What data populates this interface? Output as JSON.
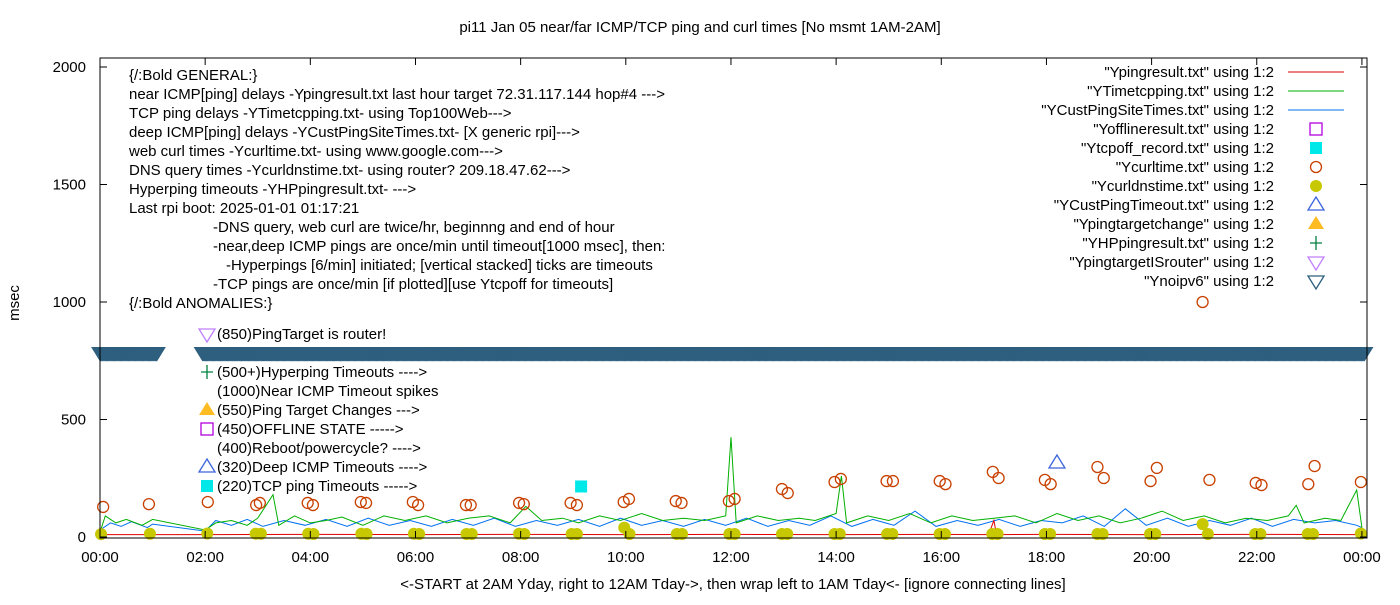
{
  "chart_data": {
    "type": "scatter",
    "title": "pi11 Jan 05  near/far ICMP/TCP ping and curl times [No msmt 1AM-2AM]",
    "xlabel": "<-START at 2AM Yday, right to 12AM Tday->, then wrap left to 1AM Tday<- [ignore connecting lines]",
    "ylabel": "msec",
    "xlim": [
      0,
      24.1
    ],
    "ylim": [
      0,
      2000
    ],
    "x_unit": "hours of day",
    "x_ticks": [
      "00:00",
      "02:00",
      "04:00",
      "06:00",
      "08:00",
      "10:00",
      "12:00",
      "14:00",
      "16:00",
      "18:00",
      "20:00",
      "22:00",
      "00:00"
    ],
    "y_ticks": [
      "0",
      "500",
      "1000",
      "1500",
      "2000"
    ],
    "grid": false,
    "legend_position": "top-right",
    "notes": [
      {
        "text": "{/:Bold GENERAL:}",
        "indent": 0
      },
      {
        "text": "near ICMP[ping] delays -Ypingresult.txt last hour target 72.31.117.144 hop#4 --->",
        "indent": 0
      },
      {
        "text": "TCP ping delays -YTimetcpping.txt- using Top100Web--->",
        "indent": 0
      },
      {
        "text": "deep ICMP[ping] delays -YCustPingSiteTimes.txt- [X generic rpi]--->",
        "indent": 0
      },
      {
        "text": "web curl times -Ycurltime.txt- using www.google.com--->",
        "indent": 0
      },
      {
        "text": "DNS query times -Ycurldnstime.txt- using router? 209.18.47.62--->",
        "indent": 0
      },
      {
        "text": "Hyperping timeouts -YHPpingresult.txt- --->",
        "indent": 0
      },
      {
        "text": "Last rpi boot: 2025-01-01 01:17:21",
        "indent": 0
      },
      {
        "text": "-DNS query, web curl are twice/hr, beginnng and end of hour",
        "indent": 1
      },
      {
        "text": "-near,deep ICMP pings are once/min until timeout[1000 msec], then:",
        "indent": 1
      },
      {
        "text": "-Hyperpings [6/min] initiated; [vertical stacked] ticks are timeouts",
        "indent": 2
      },
      {
        "text": "-TCP pings are once/min [if plotted][use Ytcpoff for timeouts]",
        "indent": 1
      },
      {
        "text": "{/:Bold ANOMALIES:}",
        "indent": 0
      }
    ],
    "anomalies": [
      {
        "symbol": "router",
        "text": "(850)PingTarget is router!"
      },
      {
        "symbol": "hyperping",
        "text": "(500+)Hyperping Timeouts ---->"
      },
      {
        "symbol": "none",
        "text": "(1000)Near ICMP Timeout spikes"
      },
      {
        "symbol": "targetchange",
        "text": "(550)Ping Target Changes --->"
      },
      {
        "symbol": "offline",
        "text": "(450)OFFLINE STATE ----->"
      },
      {
        "symbol": "none",
        "text": "(400)Reboot/powercycle? ---->"
      },
      {
        "symbol": "deeptimeout",
        "text": "(320)Deep ICMP Timeouts ---->"
      },
      {
        "symbol": "tcpoff",
        "text": "(220)TCP ping Timeouts ----->"
      }
    ],
    "series": [
      {
        "name": "\"Ypingresult.txt\" using 1:2",
        "key": "ping",
        "style": "line",
        "color": "#e00000",
        "points": [
          [
            0,
            10
          ],
          [
            1,
            10
          ],
          [
            2,
            10
          ],
          [
            4,
            11
          ],
          [
            6,
            10
          ],
          [
            8,
            11
          ],
          [
            10,
            10
          ],
          [
            12,
            11
          ],
          [
            14,
            10
          ],
          [
            16,
            11
          ],
          [
            16.9,
            10
          ],
          [
            17.0,
            70
          ],
          [
            17.05,
            10
          ],
          [
            18,
            11
          ],
          [
            20,
            10
          ],
          [
            22,
            11
          ],
          [
            24,
            10
          ]
        ]
      },
      {
        "name": "\"YTimetcpping.txt\" using 1:2",
        "key": "tcp",
        "style": "line",
        "color": "#00b000",
        "points": [
          [
            0,
            20
          ],
          [
            0.1,
            90
          ],
          [
            0.3,
            60
          ],
          [
            0.5,
            75
          ],
          [
            0.8,
            50
          ],
          [
            1.0,
            75
          ],
          [
            2.0,
            30
          ],
          [
            2.2,
            60
          ],
          [
            2.5,
            70
          ],
          [
            2.8,
            50
          ],
          [
            3.0,
            80
          ],
          [
            3.29,
            180
          ],
          [
            3.4,
            50
          ],
          [
            3.7,
            90
          ],
          [
            4.0,
            60
          ],
          [
            4.3,
            70
          ],
          [
            4.6,
            85
          ],
          [
            5.0,
            50
          ],
          [
            5.4,
            90
          ],
          [
            5.8,
            70
          ],
          [
            6.2,
            90
          ],
          [
            6.6,
            60
          ],
          [
            7.0,
            80
          ],
          [
            7.4,
            90
          ],
          [
            7.8,
            60
          ],
          [
            8.1,
            130
          ],
          [
            8.4,
            70
          ],
          [
            8.8,
            80
          ],
          [
            9.1,
            60
          ],
          [
            9.5,
            90
          ],
          [
            9.9,
            70
          ],
          [
            10.3,
            100
          ],
          [
            10.7,
            70
          ],
          [
            11.1,
            80
          ],
          [
            11.5,
            70
          ],
          [
            11.9,
            90
          ],
          [
            12.0,
            425
          ],
          [
            12.1,
            60
          ],
          [
            12.5,
            90
          ],
          [
            12.9,
            70
          ],
          [
            13.3,
            80
          ],
          [
            13.6,
            70
          ],
          [
            14.0,
            100
          ],
          [
            14.1,
            260
          ],
          [
            14.2,
            60
          ],
          [
            14.6,
            90
          ],
          [
            15.0,
            70
          ],
          [
            15.4,
            100
          ],
          [
            15.8,
            60
          ],
          [
            16.2,
            90
          ],
          [
            16.6,
            70
          ],
          [
            17.0,
            80
          ],
          [
            17.4,
            90
          ],
          [
            17.8,
            60
          ],
          [
            18.2,
            100
          ],
          [
            18.6,
            70
          ],
          [
            19.0,
            90
          ],
          [
            19.4,
            60
          ],
          [
            19.8,
            80
          ],
          [
            20.2,
            110
          ],
          [
            20.6,
            70
          ],
          [
            21.0,
            90
          ],
          [
            21.4,
            60
          ],
          [
            21.8,
            80
          ],
          [
            22.2,
            70
          ],
          [
            22.6,
            90
          ],
          [
            22.75,
            135
          ],
          [
            22.9,
            60
          ],
          [
            23.3,
            80
          ],
          [
            23.6,
            70
          ],
          [
            23.9,
            200
          ],
          [
            24.0,
            40
          ]
        ]
      },
      {
        "name": "\"YCustPingSiteTimes.txt\" using 1:2",
        "key": "cust",
        "style": "line",
        "color": "#0070f0",
        "points": [
          [
            0,
            30
          ],
          [
            0.2,
            60
          ],
          [
            0.4,
            45
          ],
          [
            0.6,
            65
          ],
          [
            0.9,
            40
          ],
          [
            1.0,
            55
          ],
          [
            2.0,
            25
          ],
          [
            2.2,
            70
          ],
          [
            2.5,
            50
          ],
          [
            2.8,
            75
          ],
          [
            3.1,
            45
          ],
          [
            3.5,
            70
          ],
          [
            3.9,
            50
          ],
          [
            4.3,
            75
          ],
          [
            4.7,
            45
          ],
          [
            5.1,
            80
          ],
          [
            5.5,
            50
          ],
          [
            5.9,
            70
          ],
          [
            6.3,
            45
          ],
          [
            6.7,
            75
          ],
          [
            7.1,
            50
          ],
          [
            7.5,
            80
          ],
          [
            7.9,
            45
          ],
          [
            8.3,
            70
          ],
          [
            8.7,
            50
          ],
          [
            9.1,
            75
          ],
          [
            9.5,
            45
          ],
          [
            9.9,
            80
          ],
          [
            10.3,
            50
          ],
          [
            10.7,
            70
          ],
          [
            11.1,
            45
          ],
          [
            11.5,
            75
          ],
          [
            11.9,
            50
          ],
          [
            12.3,
            80
          ],
          [
            12.7,
            45
          ],
          [
            13.1,
            70
          ],
          [
            13.5,
            50
          ],
          [
            13.9,
            90
          ],
          [
            14.3,
            45
          ],
          [
            14.7,
            75
          ],
          [
            15.1,
            50
          ],
          [
            15.5,
            110
          ],
          [
            15.9,
            45
          ],
          [
            16.3,
            70
          ],
          [
            16.7,
            50
          ],
          [
            17.1,
            75
          ],
          [
            17.5,
            45
          ],
          [
            17.9,
            70
          ],
          [
            18.3,
            60
          ],
          [
            18.7,
            90
          ],
          [
            19.1,
            45
          ],
          [
            19.5,
            120
          ],
          [
            19.9,
            50
          ],
          [
            20.3,
            80
          ],
          [
            20.7,
            45
          ],
          [
            21.1,
            70
          ],
          [
            21.5,
            50
          ],
          [
            21.9,
            80
          ],
          [
            22.3,
            45
          ],
          [
            22.7,
            75
          ],
          [
            23.1,
            60
          ],
          [
            23.5,
            70
          ],
          [
            23.9,
            50
          ],
          [
            24.0,
            40
          ]
        ]
      },
      {
        "name": "\"Yofflineresult.txt\" using 1:2",
        "key": "offline",
        "style": "open-square",
        "color": "#b400e0",
        "points": []
      },
      {
        "name": "\"Ytcpoff_record.txt\" using 1:2",
        "key": "tcpoff",
        "style": "filled-square",
        "color": "#00e8e8",
        "points": [
          [
            9.15,
            215
          ]
        ]
      },
      {
        "name": "\"Ycurltime.txt\" using 1:2",
        "key": "curl",
        "style": "open-circle",
        "color": "#c84000",
        "points": [
          [
            0.06,
            128
          ],
          [
            0.93,
            140
          ],
          [
            2.05,
            149
          ],
          [
            2.97,
            136
          ],
          [
            3.04,
            145
          ],
          [
            3.95,
            145
          ],
          [
            4.05,
            136
          ],
          [
            4.96,
            149
          ],
          [
            5.06,
            145
          ],
          [
            5.95,
            149
          ],
          [
            6.05,
            136
          ],
          [
            6.96,
            136
          ],
          [
            7.05,
            136
          ],
          [
            7.97,
            145
          ],
          [
            8.06,
            140
          ],
          [
            8.95,
            145
          ],
          [
            9.07,
            136
          ],
          [
            9.96,
            149
          ],
          [
            10.06,
            162
          ],
          [
            10.95,
            153
          ],
          [
            11.06,
            145
          ],
          [
            11.96,
            153
          ],
          [
            12.07,
            162
          ],
          [
            12.97,
            204
          ],
          [
            13.08,
            187
          ],
          [
            13.97,
            234
          ],
          [
            14.09,
            247
          ],
          [
            14.96,
            238
          ],
          [
            15.08,
            238
          ],
          [
            15.97,
            238
          ],
          [
            16.08,
            225
          ],
          [
            16.98,
            277
          ],
          [
            17.09,
            251
          ],
          [
            17.97,
            243
          ],
          [
            18.08,
            225
          ],
          [
            18.97,
            298
          ],
          [
            19.09,
            251
          ],
          [
            19.98,
            238
          ],
          [
            20.1,
            294
          ],
          [
            20.97,
            1000
          ],
          [
            21.1,
            243
          ],
          [
            21.98,
            230
          ],
          [
            22.09,
            221
          ],
          [
            22.98,
            225
          ],
          [
            23.1,
            302
          ],
          [
            23.98,
            234
          ]
        ]
      },
      {
        "name": "\"Ycurldnstime.txt\" using 1:2",
        "key": "dns",
        "style": "filled-circle",
        "color": "#c8c800",
        "points": [
          [
            0.02,
            12
          ],
          [
            0.95,
            14
          ],
          [
            2.04,
            15
          ],
          [
            2.96,
            14
          ],
          [
            3.06,
            14
          ],
          [
            3.96,
            14
          ],
          [
            4.06,
            13
          ],
          [
            4.97,
            14
          ],
          [
            5.07,
            13
          ],
          [
            5.97,
            14
          ],
          [
            6.07,
            13
          ],
          [
            6.97,
            13
          ],
          [
            7.07,
            13
          ],
          [
            7.97,
            14
          ],
          [
            8.07,
            13
          ],
          [
            8.97,
            13
          ],
          [
            9.07,
            13
          ],
          [
            9.97,
            40
          ],
          [
            10.07,
            13
          ],
          [
            10.97,
            13
          ],
          [
            11.07,
            13
          ],
          [
            11.97,
            13
          ],
          [
            12.07,
            13
          ],
          [
            12.97,
            13
          ],
          [
            13.07,
            13
          ],
          [
            13.97,
            13
          ],
          [
            14.07,
            13
          ],
          [
            14.97,
            13
          ],
          [
            15.07,
            13
          ],
          [
            15.97,
            13
          ],
          [
            16.07,
            13
          ],
          [
            16.97,
            13
          ],
          [
            17.07,
            13
          ],
          [
            17.97,
            13
          ],
          [
            18.07,
            13
          ],
          [
            18.97,
            13
          ],
          [
            19.07,
            13
          ],
          [
            19.97,
            13
          ],
          [
            20.07,
            13
          ],
          [
            20.97,
            55
          ],
          [
            21.07,
            13
          ],
          [
            21.97,
            13
          ],
          [
            22.07,
            13
          ],
          [
            22.97,
            13
          ],
          [
            23.07,
            13
          ],
          [
            23.98,
            15
          ]
        ]
      },
      {
        "name": "\"YCustPingTimeout.txt\" using 1:2",
        "key": "deeptimeout",
        "style": "open-triangle-up",
        "color": "#3c64dc",
        "points": [
          [
            18.2,
            315
          ]
        ]
      },
      {
        "name": "\"Ypingtargetchange\" using 1:2",
        "key": "targetchange",
        "style": "filled-triangle-up",
        "color": "#ffbb22",
        "points": []
      },
      {
        "name": "\"YHPpingresult.txt\" using 1:2",
        "key": "hyperping",
        "style": "plus",
        "color": "#008040",
        "points": []
      },
      {
        "name": "\"YpingtargetISrouter\" using 1:2",
        "key": "router",
        "style": "open-triangle-down",
        "color": "#c080ff",
        "points": []
      },
      {
        "name": "\"Ynoipv6\" using 1:2",
        "key": "noipv6",
        "style": "open-triangle-down",
        "color": "#2e5f7f",
        "value": 785,
        "every_minutes": 1,
        "intervals": [
          [
            0,
            1.1
          ],
          [
            1.95,
            24.05
          ]
        ]
      }
    ]
  }
}
